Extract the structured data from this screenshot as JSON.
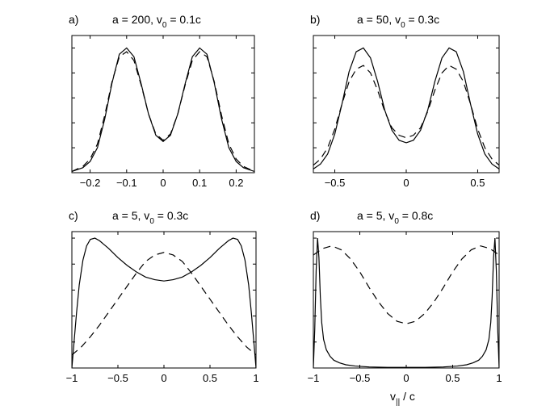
{
  "chart_data": [
    {
      "type": "line",
      "panel_label": "a)",
      "title_main": "a = 200, v",
      "title_sub": "0",
      "title_tail": " = 0.1c",
      "xlim": [
        -0.25,
        0.25
      ],
      "ylim": [
        0,
        1.1
      ],
      "xticks": [
        -0.2,
        -0.1,
        0,
        0.1,
        0.2
      ],
      "xtick_labels": [
        "−0.2",
        "−0.1",
        "0",
        "0.1",
        "0.2"
      ],
      "yticks": [
        0.2,
        0.4,
        0.6,
        0.8,
        1.0
      ],
      "xlabel": "",
      "series": [
        {
          "style": "solid",
          "x": [
            -0.25,
            -0.22,
            -0.2,
            -0.18,
            -0.16,
            -0.14,
            -0.12,
            -0.1,
            -0.08,
            -0.06,
            -0.04,
            -0.02,
            0,
            0.02,
            0.04,
            0.06,
            0.08,
            0.1,
            0.12,
            0.14,
            0.16,
            0.18,
            0.2,
            0.22,
            0.25
          ],
          "y": [
            0.01,
            0.04,
            0.09,
            0.2,
            0.43,
            0.72,
            0.95,
            1.0,
            0.93,
            0.71,
            0.47,
            0.3,
            0.25,
            0.3,
            0.47,
            0.71,
            0.93,
            1.0,
            0.95,
            0.72,
            0.43,
            0.2,
            0.09,
            0.04,
            0.01
          ]
        },
        {
          "style": "dashed",
          "x": [
            -0.25,
            -0.22,
            -0.2,
            -0.18,
            -0.16,
            -0.14,
            -0.12,
            -0.1,
            -0.08,
            -0.06,
            -0.04,
            -0.02,
            0,
            0.02,
            0.04,
            0.06,
            0.08,
            0.1,
            0.12,
            0.14,
            0.16,
            0.18,
            0.2,
            0.22,
            0.25
          ],
          "y": [
            0.01,
            0.05,
            0.11,
            0.23,
            0.46,
            0.73,
            0.93,
            0.97,
            0.9,
            0.7,
            0.47,
            0.31,
            0.26,
            0.31,
            0.47,
            0.7,
            0.9,
            0.97,
            0.93,
            0.73,
            0.46,
            0.23,
            0.11,
            0.05,
            0.01
          ]
        }
      ]
    },
    {
      "type": "line",
      "panel_label": "b)",
      "title_main": "a = 50, v",
      "title_sub": "0",
      "title_tail": " = 0.3c",
      "xlim": [
        -0.65,
        0.65
      ],
      "ylim": [
        0,
        1.1
      ],
      "xticks": [
        -0.5,
        0,
        0.5
      ],
      "xtick_labels": [
        "−0.5",
        "0",
        "0.5"
      ],
      "yticks": [
        0.2,
        0.4,
        0.6,
        0.8,
        1.0
      ],
      "xlabel": "",
      "series": [
        {
          "style": "solid",
          "x": [
            -0.65,
            -0.6,
            -0.55,
            -0.5,
            -0.45,
            -0.4,
            -0.35,
            -0.3,
            -0.25,
            -0.2,
            -0.15,
            -0.1,
            -0.05,
            0,
            0.05,
            0.1,
            0.15,
            0.2,
            0.25,
            0.3,
            0.35,
            0.4,
            0.45,
            0.5,
            0.55,
            0.6,
            0.65
          ],
          "y": [
            0.03,
            0.07,
            0.15,
            0.31,
            0.55,
            0.81,
            0.97,
            1.0,
            0.92,
            0.73,
            0.5,
            0.34,
            0.26,
            0.24,
            0.26,
            0.34,
            0.5,
            0.73,
            0.92,
            1.0,
            0.97,
            0.81,
            0.55,
            0.31,
            0.15,
            0.07,
            0.03
          ]
        },
        {
          "style": "dashed",
          "x": [
            -0.65,
            -0.6,
            -0.55,
            -0.5,
            -0.45,
            -0.4,
            -0.35,
            -0.3,
            -0.25,
            -0.2,
            -0.15,
            -0.1,
            -0.05,
            0,
            0.05,
            0.1,
            0.15,
            0.2,
            0.25,
            0.3,
            0.35,
            0.4,
            0.45,
            0.5,
            0.55,
            0.6,
            0.65
          ],
          "y": [
            0.06,
            0.11,
            0.2,
            0.35,
            0.55,
            0.73,
            0.83,
            0.86,
            0.8,
            0.66,
            0.49,
            0.36,
            0.3,
            0.28,
            0.3,
            0.36,
            0.49,
            0.66,
            0.8,
            0.86,
            0.83,
            0.73,
            0.55,
            0.35,
            0.2,
            0.11,
            0.06
          ]
        }
      ]
    },
    {
      "type": "line",
      "panel_label": "c)",
      "title_main": "a = 5, v",
      "title_sub": "0",
      "title_tail": " = 0.3c",
      "xlim": [
        -1,
        1
      ],
      "ylim": [
        0,
        1.05
      ],
      "xticks": [
        -1,
        -0.5,
        0,
        0.5,
        1
      ],
      "xtick_labels": [
        "−1",
        "−0.5",
        "0",
        "0.5",
        "1"
      ],
      "yticks": [
        0.2,
        0.4,
        0.6,
        0.8,
        1.0
      ],
      "xlabel": "",
      "series": [
        {
          "style": "solid",
          "x": [
            -1,
            -0.98,
            -0.95,
            -0.92,
            -0.88,
            -0.84,
            -0.8,
            -0.75,
            -0.7,
            -0.6,
            -0.5,
            -0.4,
            -0.3,
            -0.2,
            -0.1,
            0,
            0.1,
            0.2,
            0.3,
            0.4,
            0.5,
            0.6,
            0.7,
            0.75,
            0.8,
            0.84,
            0.88,
            0.92,
            0.95,
            0.98,
            1
          ],
          "y": [
            0.0,
            0.17,
            0.42,
            0.64,
            0.83,
            0.94,
            0.99,
            1.0,
            0.98,
            0.92,
            0.85,
            0.79,
            0.74,
            0.7,
            0.68,
            0.67,
            0.68,
            0.7,
            0.74,
            0.79,
            0.85,
            0.92,
            0.98,
            1.0,
            0.99,
            0.94,
            0.83,
            0.64,
            0.42,
            0.17,
            0.0
          ]
        },
        {
          "style": "dashed",
          "x": [
            -1,
            -0.9,
            -0.8,
            -0.7,
            -0.6,
            -0.5,
            -0.4,
            -0.3,
            -0.2,
            -0.1,
            0,
            0.1,
            0.2,
            0.3,
            0.4,
            0.5,
            0.6,
            0.7,
            0.8,
            0.9,
            1
          ],
          "y": [
            0.1,
            0.16,
            0.24,
            0.33,
            0.43,
            0.53,
            0.63,
            0.73,
            0.82,
            0.87,
            0.89,
            0.87,
            0.82,
            0.73,
            0.63,
            0.53,
            0.43,
            0.33,
            0.24,
            0.16,
            0.1
          ]
        }
      ]
    },
    {
      "type": "line",
      "panel_label": "d)",
      "title_main": "a = 5, v",
      "title_sub": "0",
      "title_tail": " = 0.8c",
      "xlim": [
        -1,
        1
      ],
      "ylim": [
        0,
        1.05
      ],
      "xticks": [
        -1,
        -0.5,
        0,
        0.5,
        1
      ],
      "xtick_labels": [
        "−1",
        "−0.5",
        "0",
        "0.5",
        "1"
      ],
      "yticks": [
        0.2,
        0.4,
        0.6,
        0.8,
        1.0
      ],
      "xlabel_main": "v",
      "xlabel_sub": "||",
      "xlabel_tail": " / c",
      "series": [
        {
          "style": "solid",
          "x": [
            -1,
            -0.985,
            -0.97,
            -0.955,
            -0.94,
            -0.925,
            -0.91,
            -0.89,
            -0.86,
            -0.82,
            -0.78,
            -0.72,
            -0.65,
            -0.55,
            -0.4,
            -0.2,
            0,
            0.2,
            0.4,
            0.55,
            0.65,
            0.72,
            0.78,
            0.82,
            0.86,
            0.89,
            0.91,
            0.925,
            0.94,
            0.955,
            0.97,
            0.985,
            1
          ],
          "y": [
            0.0,
            0.3,
            0.75,
            1.0,
            0.85,
            0.55,
            0.35,
            0.22,
            0.14,
            0.09,
            0.06,
            0.04,
            0.025,
            0.015,
            0.008,
            0.005,
            0.005,
            0.005,
            0.008,
            0.015,
            0.025,
            0.04,
            0.06,
            0.09,
            0.14,
            0.22,
            0.35,
            0.55,
            0.85,
            1.0,
            0.75,
            0.3,
            0.0
          ]
        },
        {
          "style": "dashed",
          "x": [
            -1,
            -0.9,
            -0.8,
            -0.7,
            -0.6,
            -0.5,
            -0.4,
            -0.3,
            -0.2,
            -0.1,
            0,
            0.1,
            0.2,
            0.3,
            0.4,
            0.5,
            0.6,
            0.7,
            0.8,
            0.9,
            1
          ],
          "y": [
            0.87,
            0.92,
            0.94,
            0.91,
            0.84,
            0.74,
            0.62,
            0.51,
            0.42,
            0.36,
            0.34,
            0.36,
            0.42,
            0.51,
            0.62,
            0.74,
            0.84,
            0.91,
            0.94,
            0.92,
            0.87
          ]
        }
      ]
    }
  ]
}
